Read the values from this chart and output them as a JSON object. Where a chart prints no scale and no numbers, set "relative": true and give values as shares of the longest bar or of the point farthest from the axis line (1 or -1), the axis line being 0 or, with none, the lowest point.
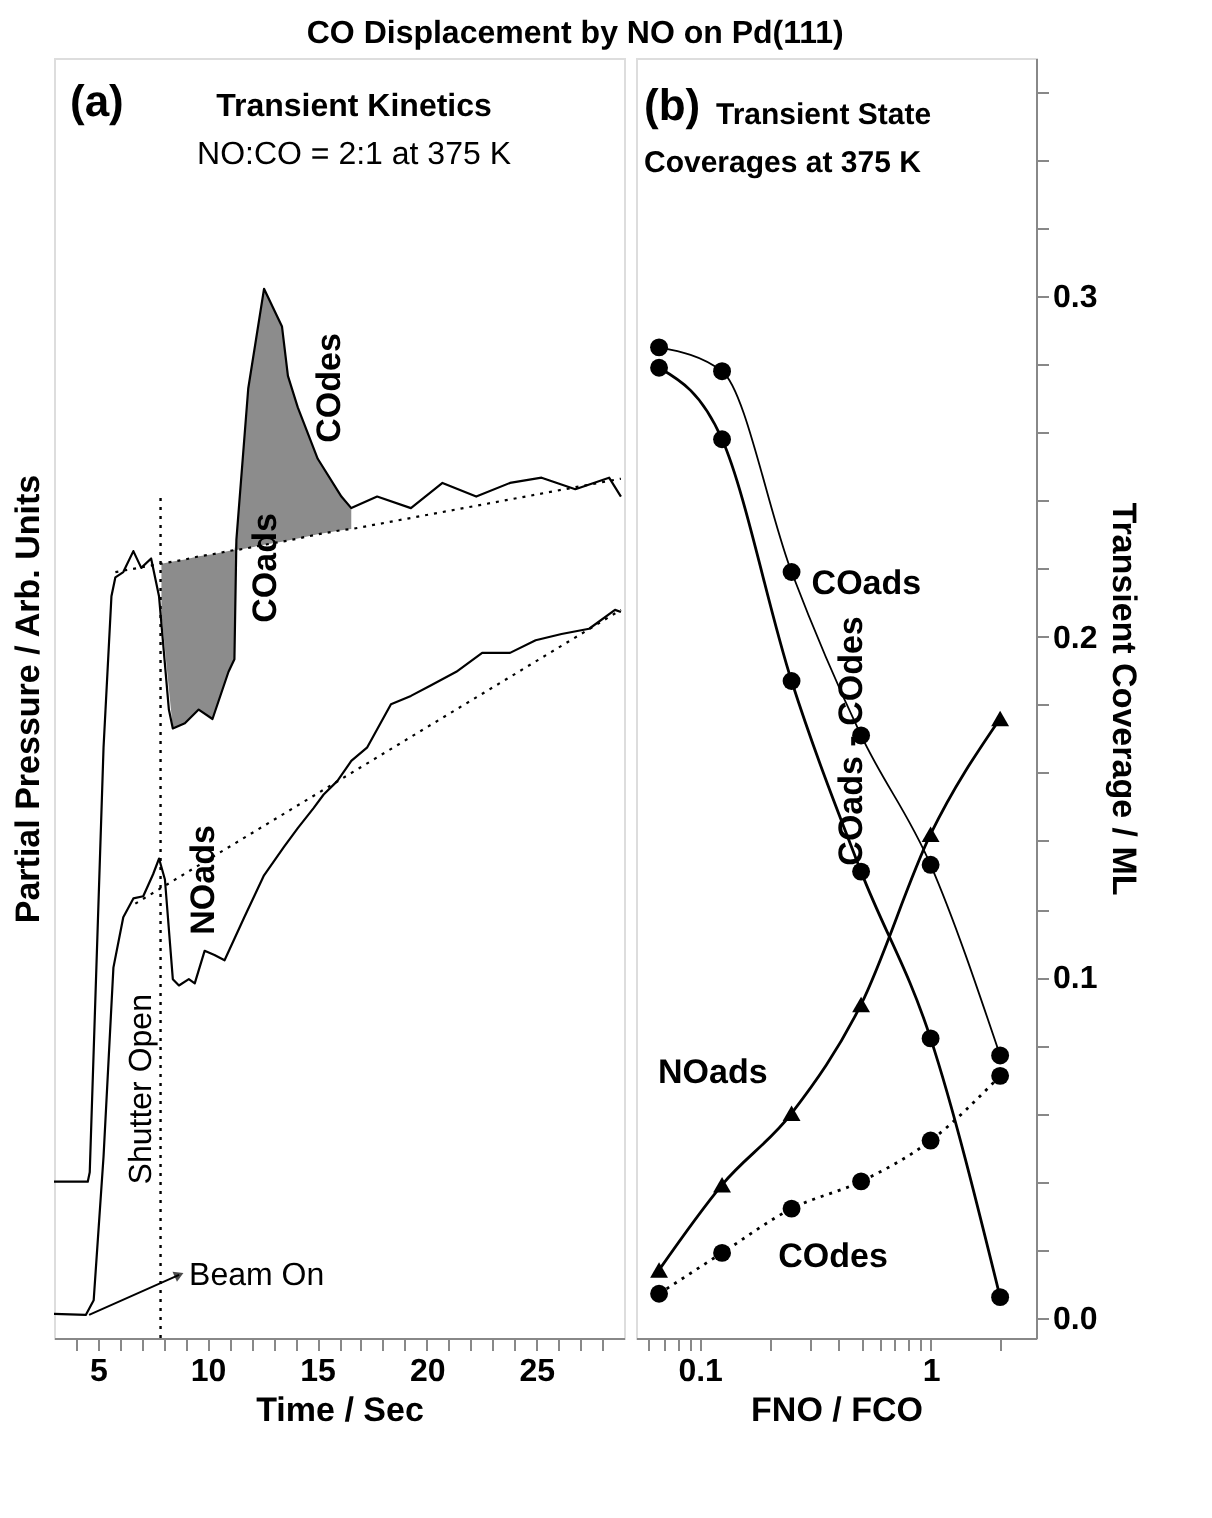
{
  "chart_data": [
    {
      "type": "line",
      "title": "CO Displacement by NO on Pd(111)",
      "xlabel": "Time / Sec",
      "ylabel": "Partial Pressure / Arb. Units",
      "relative": true,
      "tick_labels": "x",
      "xlim": [
        3,
        29
      ],
      "xticks": [
        {
          "value": 4,
          "label": null
        },
        5,
        {
          "value": 6,
          "label": null
        },
        {
          "value": 7,
          "label": null
        },
        {
          "value": 8,
          "label": null
        },
        {
          "value": 9,
          "label": null
        },
        10,
        {
          "value": 11,
          "label": null
        },
        {
          "value": 12,
          "label": null
        },
        {
          "value": 13,
          "label": null
        },
        {
          "value": 14,
          "label": null
        },
        15,
        {
          "value": 16,
          "label": null
        },
        {
          "value": 17,
          "label": null
        },
        {
          "value": 18,
          "label": null
        },
        {
          "value": 19,
          "label": null
        },
        20,
        {
          "value": 21,
          "label": null
        },
        {
          "value": 22,
          "label": null
        },
        {
          "value": 23,
          "label": null
        },
        {
          "value": 24,
          "label": null
        },
        25,
        {
          "value": 26,
          "label": null
        },
        {
          "value": 27,
          "label": null
        },
        {
          "value": 28,
          "label": null
        }
      ],
      "series": [
        {
          "type": "line",
          "color": "#000000",
          "line_style": "dotted",
          "x": [
            5.8,
            7.9,
            8.42,
            8.97,
            9.6,
            10.23,
            10.96,
            11.23,
            11.32,
            11.86,
            12.58,
            13.4,
            13.67,
            14.12,
            15.03,
            16.11,
            16.56,
            28.86
          ],
          "values": [
            0.73,
            0.738,
            0.74,
            0.742,
            0.745,
            0.747,
            0.75,
            0.751,
            0.751,
            0.753,
            0.756,
            0.759,
            0.76,
            0.762,
            0.766,
            0.77,
            0.771,
            0.819
          ],
          "lower": [
            null,
            0.69,
            0.581,
            0.586,
            0.599,
            0.59,
            0.635,
            0.647,
            0.751,
            0.753,
            0.756,
            0.759,
            0.76,
            0.762,
            0.766,
            0.77,
            0.771,
            null
          ],
          "upper": [
            null,
            0.738,
            0.74,
            0.742,
            0.745,
            0.747,
            0.75,
            0.751,
            0.761,
            0.905,
            1.0,
            0.964,
            0.917,
            0.887,
            0.838,
            0.802,
            0.791,
            null
          ]
        },
        {
          "type": "line",
          "color": "#000000",
          "line_style": "solid",
          "x": [
            3.0,
            4.54,
            4.63,
            5.26,
            5.62,
            5.8,
            6.16,
            6.62,
            6.98,
            7.43,
            7.79,
            8.24,
            8.42,
            8.97,
            9.6,
            10.23,
            10.96,
            11.23,
            11.32,
            11.86,
            12.58,
            13.4,
            13.67,
            14.12,
            15.03,
            16.11,
            16.56,
            17.74,
            19.28,
            20.72,
            22.26,
            23.8,
            25.24,
            26.78,
            28.32,
            28.86
          ],
          "values": [
            0.149,
            0.149,
            0.158,
            0.563,
            0.707,
            0.725,
            0.73,
            0.75,
            0.734,
            0.743,
            0.707,
            0.599,
            0.581,
            0.586,
            0.599,
            0.59,
            0.635,
            0.647,
            0.761,
            0.905,
            1.0,
            0.964,
            0.917,
            0.887,
            0.838,
            0.802,
            0.791,
            0.802,
            0.791,
            0.815,
            0.802,
            0.815,
            0.82,
            0.809,
            0.82,
            0.802
          ]
        },
        {
          "type": "line",
          "color": "#000000",
          "line_style": "solid",
          "x": [
            3.0,
            4.45,
            4.81,
            5.26,
            5.71,
            6.16,
            6.62,
            7.07,
            7.52,
            7.79,
            8.06,
            8.42,
            8.7,
            9.15,
            9.42,
            9.87,
            10.32,
            10.78,
            11.68,
            12.58,
            13.49,
            14.12,
            14.84,
            15.3,
            15.93,
            16.56,
            17.29,
            18.37,
            19.28,
            20.18,
            21.35,
            22.53,
            23.8,
            24.97,
            26.15,
            27.41,
            28.59,
            28.86
          ],
          "values": [
            0.023,
            0.022,
            0.036,
            0.173,
            0.353,
            0.401,
            0.419,
            0.421,
            0.442,
            0.457,
            0.437,
            0.342,
            0.336,
            0.342,
            0.338,
            0.369,
            0.365,
            0.36,
            0.401,
            0.441,
            0.468,
            0.486,
            0.505,
            0.518,
            0.531,
            0.55,
            0.563,
            0.604,
            0.612,
            0.622,
            0.635,
            0.653,
            0.653,
            0.665,
            0.671,
            0.676,
            0.694,
            0.692
          ]
        },
        {
          "type": "line",
          "color": "#000000",
          "line_style": "dotted",
          "x": [
            6.71,
            28.86
          ],
          "values": [
            0.414,
            0.694
          ]
        }
      ],
      "ref_lines": [
        {
          "axis": "x",
          "value": 7.86,
          "label": "Shutter Open",
          "line_style": "dotted",
          "color": "#000000"
        }
      ],
      "annotations": [
        "(a)",
        "Transient Kinetics",
        "NO:CO = 2:1 at 375 K",
        "COdes",
        "COads",
        "NOads",
        {
          "text": "Beam On",
          "x": 4.6,
          "y": 0.022
        }
      ]
    },
    {
      "type": "line",
      "xlabel": "FNO / FCO",
      "ylabel": "Transient Coverage / ML",
      "log": "x",
      "x": [
        0.0667,
        0.125,
        0.25,
        0.5,
        1,
        2
      ],
      "xlim": [
        0.053,
        2.86
      ],
      "xticks": [
        {
          "value": 0.06,
          "label": null
        },
        {
          "value": 0.07,
          "label": null
        },
        {
          "value": 0.08,
          "label": null
        },
        {
          "value": 0.09,
          "label": null
        },
        0.1,
        {
          "value": 0.2,
          "label": null
        },
        {
          "value": 0.3,
          "label": null
        },
        {
          "value": 0.4,
          "label": null
        },
        {
          "value": 0.5,
          "label": null
        },
        {
          "value": 0.6,
          "label": null
        },
        {
          "value": 0.7,
          "label": null
        },
        {
          "value": 0.8,
          "label": null
        },
        {
          "value": 0.9,
          "label": null
        },
        1,
        {
          "value": 2,
          "label": null
        }
      ],
      "ylim": [
        -0.006,
        0.37
      ],
      "yticks": [
        {
          "value": 0,
          "label": "0.0"
        },
        {
          "value": 0.02,
          "label": null
        },
        {
          "value": 0.04,
          "label": null
        },
        {
          "value": 0.06,
          "label": null
        },
        {
          "value": 0.08,
          "label": null
        },
        0.1,
        {
          "value": 0.12,
          "label": null
        },
        {
          "value": 0.14,
          "label": null
        },
        {
          "value": 0.16,
          "label": null
        },
        {
          "value": 0.18,
          "label": null
        },
        0.2,
        {
          "value": 0.22,
          "label": null
        },
        {
          "value": 0.24,
          "label": null
        },
        {
          "value": 0.26,
          "label": null
        },
        {
          "value": 0.28,
          "label": null
        },
        0.3,
        {
          "value": 0.32,
          "label": null
        },
        {
          "value": 0.34,
          "label": null
        },
        {
          "value": 0.36,
          "label": null
        }
      ],
      "series": [
        {
          "name": "COads",
          "color": "#000000",
          "marker": "circle",
          "line_style": "solid",
          "values": [
            0.285,
            0.278,
            0.219,
            0.171,
            0.133,
            0.077
          ]
        },
        {
          "name": "COads - COdes",
          "color": "#000000",
          "marker": "circle",
          "line_style": "solid",
          "values": [
            0.279,
            0.258,
            0.187,
            0.131,
            0.082,
            0.006
          ]
        },
        {
          "name": "NOads",
          "color": "#000000",
          "marker": "triangle",
          "line_style": "solid",
          "values": [
            0.014,
            0.039,
            0.06,
            0.092,
            0.142,
            0.176
          ]
        },
        {
          "name": "COdes",
          "color": "#000000",
          "marker": "circle",
          "line_style": "dotted",
          "values": [
            0.007,
            0.019,
            0.032,
            0.04,
            0.052,
            0.071
          ]
        }
      ],
      "annotations": [
        "(b)",
        "Transient State",
        "Coverages at 375 K"
      ]
    }
  ]
}
